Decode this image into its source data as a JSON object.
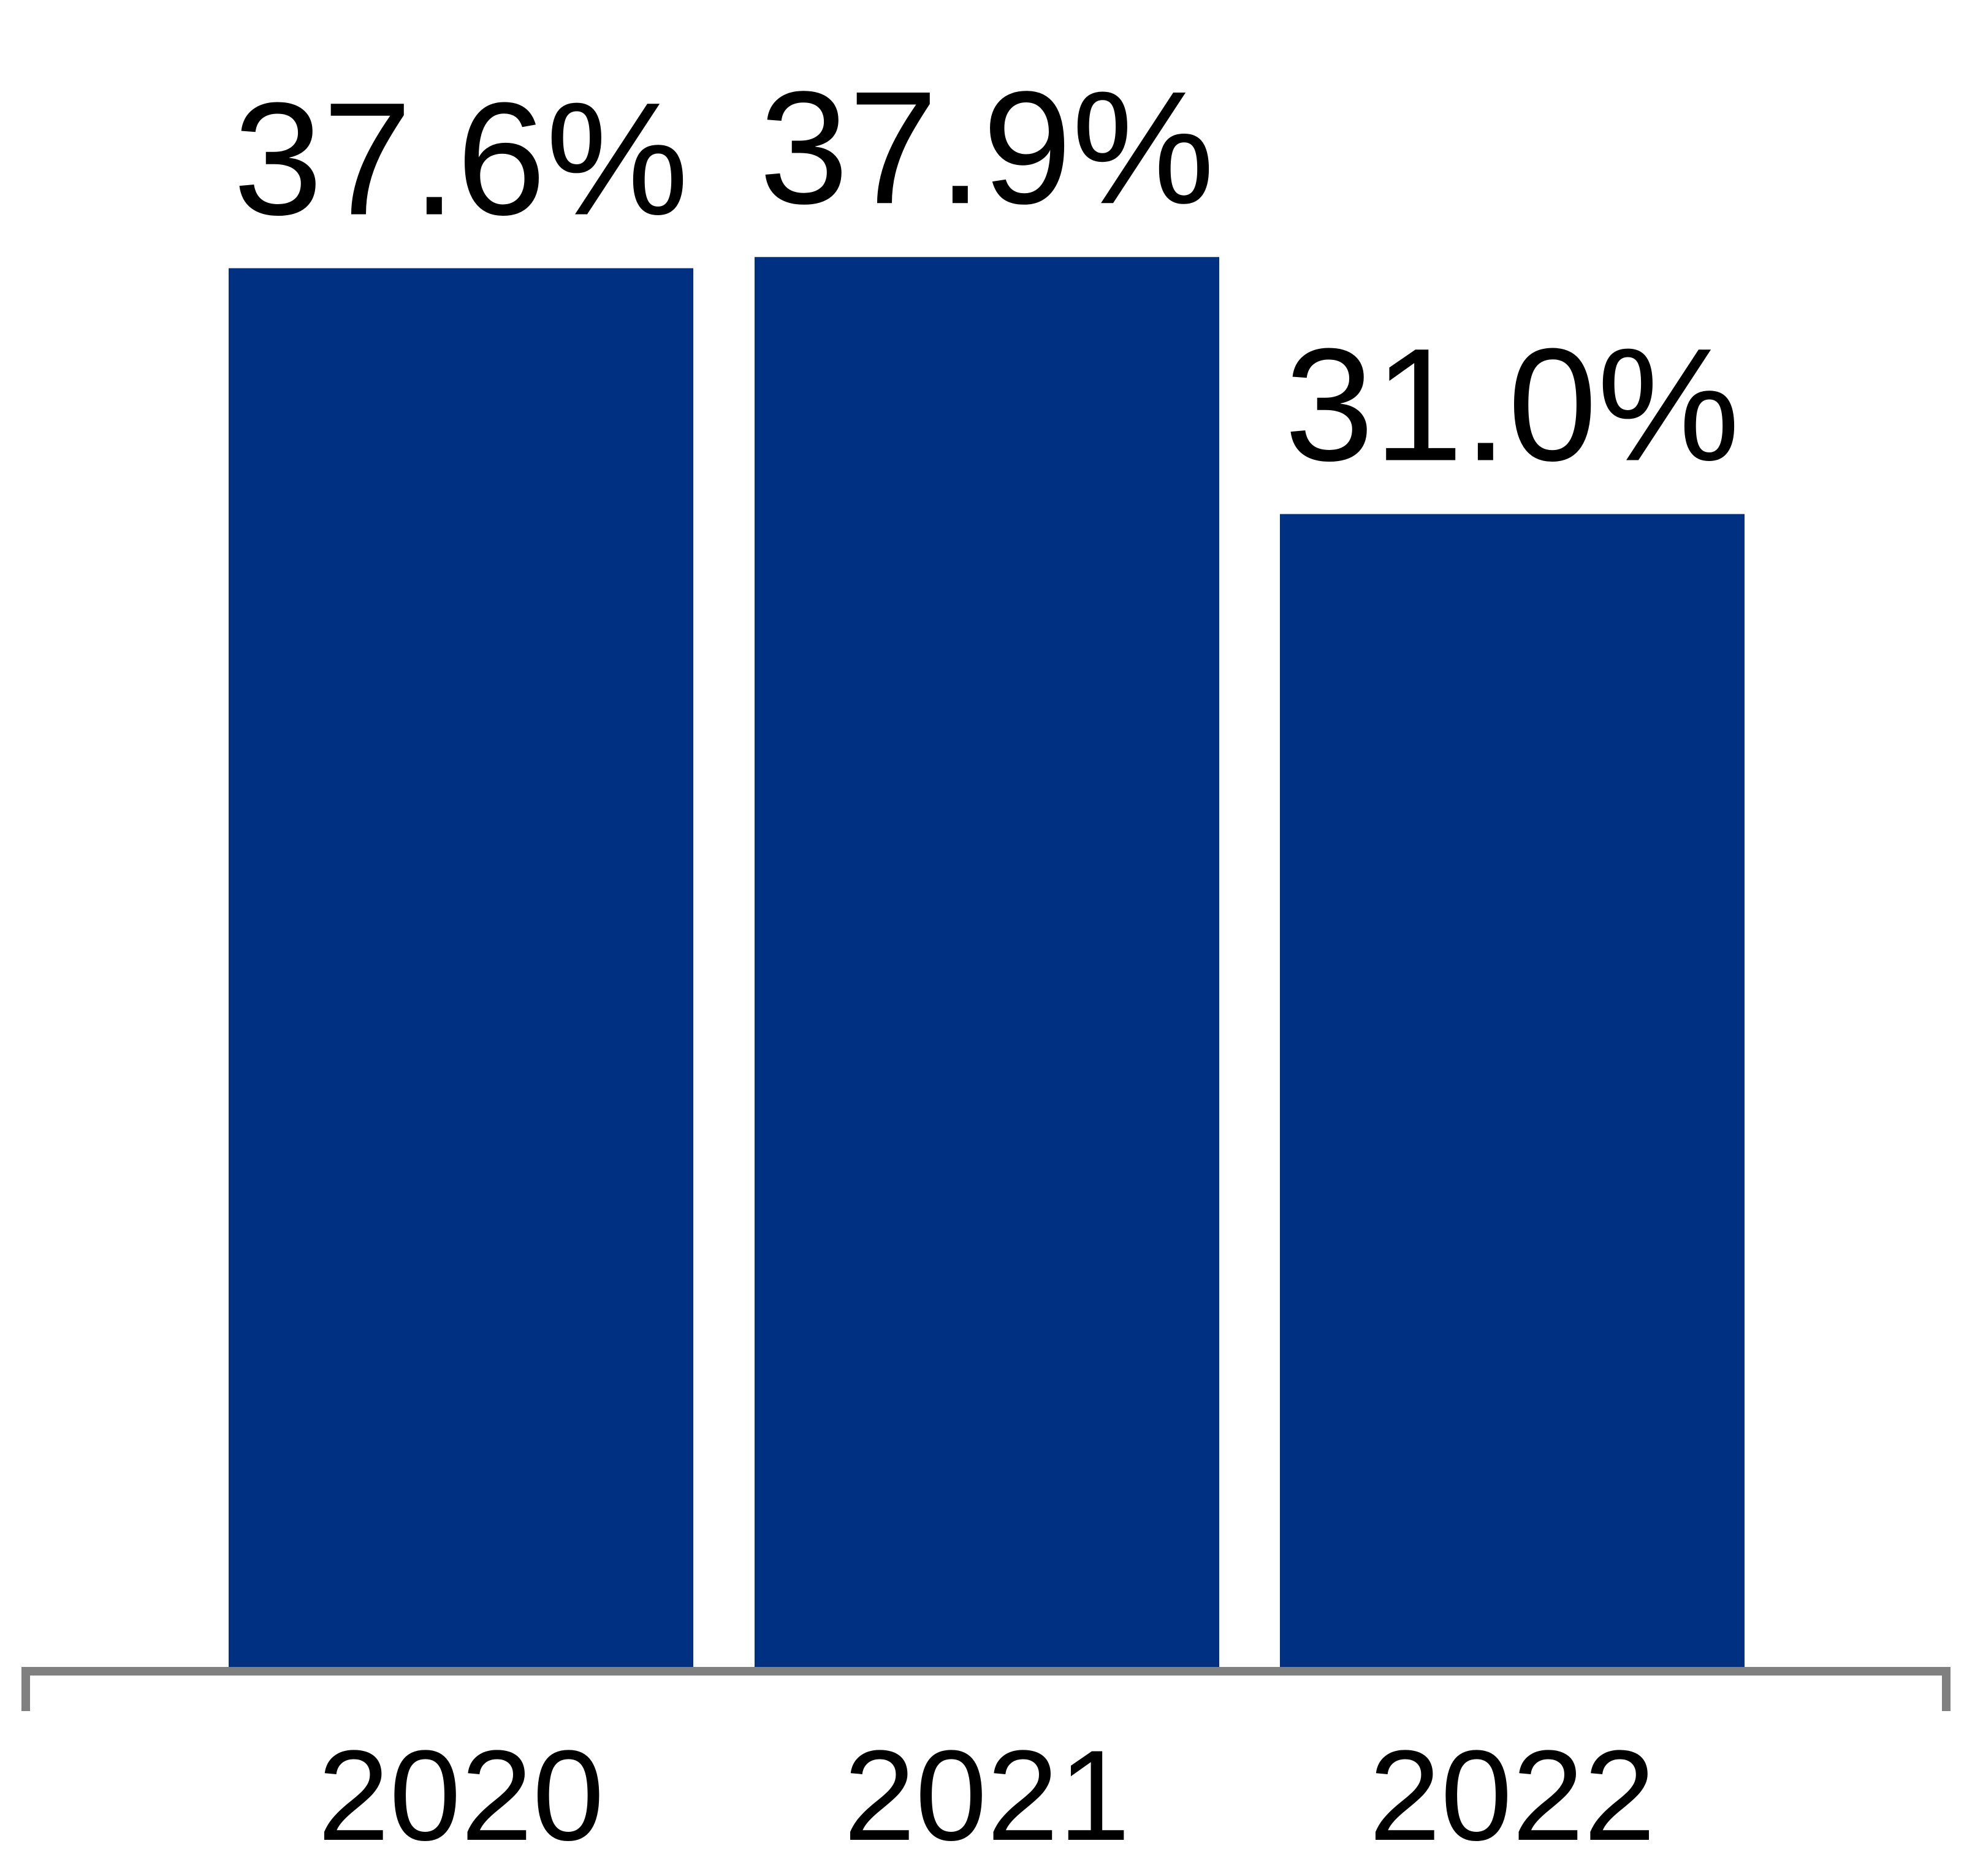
{
  "chart_data": {
    "type": "bar",
    "categories": [
      "2020",
      "2021",
      "2022"
    ],
    "values": [
      37.6,
      37.9,
      31.0
    ],
    "data_labels": [
      "37.6%",
      "37.9%",
      "31.0%"
    ],
    "title": "",
    "xlabel": "",
    "ylabel": "",
    "ylim": [
      0,
      44.8
    ],
    "grid": false,
    "legend": "none",
    "colors": {
      "bar": "#003082",
      "axis": "#808080"
    }
  }
}
